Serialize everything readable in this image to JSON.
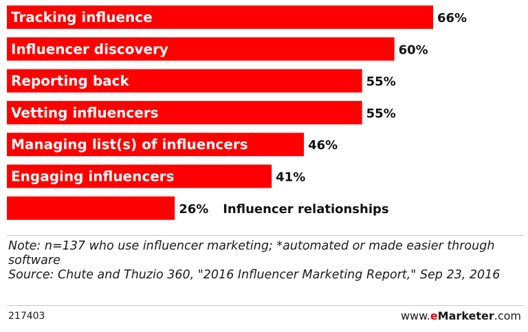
{
  "chart_data": {
    "type": "bar",
    "orientation": "horizontal",
    "categories": [
      "Tracking influence",
      "Influencer discovery",
      "Reporting back",
      "Vetting influencers",
      "Managing list(s) of influencers",
      "Engaging influencers",
      "Influencer relationships"
    ],
    "values": [
      66,
      60,
      55,
      55,
      46,
      41,
      26
    ],
    "value_labels": [
      "66%",
      "60%",
      "55%",
      "55%",
      "46%",
      "41%",
      "26%"
    ],
    "xlim": [
      0,
      66
    ],
    "bar_color": "#ff0000",
    "grid": false,
    "legend": "none"
  },
  "footnote": {
    "note": "Note: n=137 who use influencer marketing; *automated or made easier through software",
    "source": "Source: Chute and Thuzio 360, \"2016 Influencer Marketing Report,\" Sep 23, 2016"
  },
  "chart_id": "217403",
  "brand": {
    "prefix": "www.",
    "e": "e",
    "name": "Marketer",
    "suffix": ".com",
    "accent_color": "#e8000b"
  }
}
